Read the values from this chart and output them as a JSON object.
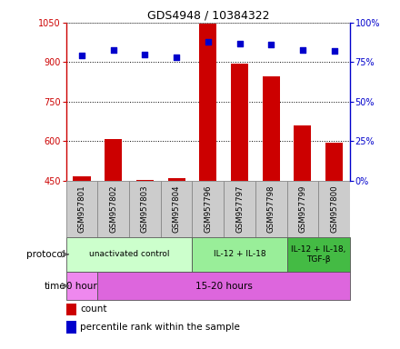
{
  "title": "GDS4948 / 10384322",
  "samples": [
    "GSM957801",
    "GSM957802",
    "GSM957803",
    "GSM957804",
    "GSM957796",
    "GSM957797",
    "GSM957798",
    "GSM957799",
    "GSM957800"
  ],
  "count_values": [
    468,
    607,
    453,
    458,
    1046,
    893,
    847,
    658,
    594
  ],
  "percentile_values": [
    79,
    83,
    80,
    78,
    88,
    87,
    86,
    83,
    82
  ],
  "ylim_left": [
    450,
    1050
  ],
  "ylim_right": [
    0,
    100
  ],
  "yticks_left": [
    450,
    600,
    750,
    900,
    1050
  ],
  "yticks_right": [
    0,
    25,
    50,
    75,
    100
  ],
  "bar_color": "#cc0000",
  "dot_color": "#0000cc",
  "protocol_groups": [
    {
      "label": "unactivated control",
      "start": 0,
      "end": 4,
      "color": "#ccffcc"
    },
    {
      "label": "IL-12 + IL-18",
      "start": 4,
      "end": 7,
      "color": "#99ee99"
    },
    {
      "label": "IL-12 + IL-18,\nTGF-β",
      "start": 7,
      "end": 9,
      "color": "#44bb44"
    }
  ],
  "time_groups": [
    {
      "label": "0 hour",
      "start": 0,
      "end": 1,
      "color": "#ee88ee"
    },
    {
      "label": "15-20 hours",
      "start": 1,
      "end": 9,
      "color": "#dd66dd"
    }
  ],
  "left_axis_color": "#cc0000",
  "right_axis_color": "#0000cc",
  "sample_box_color": "#cccccc",
  "sample_box_edge": "#888888",
  "legend_items": [
    {
      "color": "#cc0000",
      "label": "count"
    },
    {
      "color": "#0000cc",
      "label": "percentile rank within the sample"
    }
  ]
}
